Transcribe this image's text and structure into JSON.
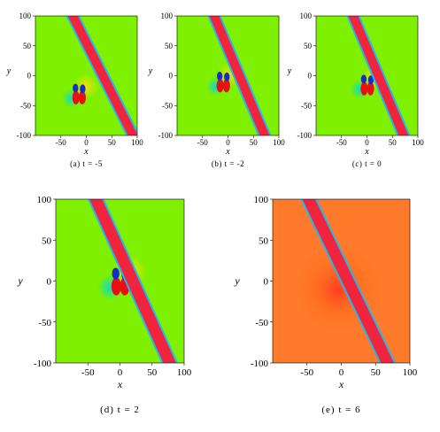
{
  "figure": {
    "panels": [
      {
        "id": "a",
        "caption": "(a) t = -5",
        "axes": {
          "xlabel": "x",
          "ylabel": "y",
          "xticks": [
            "-50",
            "0",
            "50",
            "100"
          ],
          "yticks": [
            "100",
            "50",
            "0",
            "-50",
            "-100"
          ],
          "xlim": [
            -100,
            100
          ],
          "ylim": [
            -100,
            100
          ]
        },
        "background": "#7ef000",
        "band": {
          "x_top": -30,
          "x_bottom": 95,
          "color": "#f0243c"
        },
        "lump": {
          "x": -15,
          "y": -30
        }
      },
      {
        "id": "b",
        "caption": "(b) t = -2",
        "axes": {
          "xlabel": "x",
          "ylabel": "y",
          "xticks": [
            "-50",
            "0",
            "50",
            "100"
          ],
          "yticks": [
            "100",
            "50",
            "0",
            "-50",
            "-100"
          ],
          "xlim": [
            -100,
            100
          ],
          "ylim": [
            -100,
            100
          ]
        },
        "background": "#7ef000",
        "band": {
          "x_top": -30,
          "x_bottom": 75,
          "color": "#f0243c"
        },
        "lump": {
          "x": -10,
          "y": -10
        }
      },
      {
        "id": "c",
        "caption": "(c) t = 0",
        "axes": {
          "xlabel": "x",
          "ylabel": "y",
          "xticks": [
            "-50",
            "0",
            "50",
            "100"
          ],
          "yticks": [
            "100",
            "50",
            "0",
            "-50",
            "-100"
          ],
          "xlim": [
            -100,
            100
          ],
          "ylim": [
            -100,
            100
          ]
        },
        "background": "#7ef000",
        "band": {
          "x_top": -30,
          "x_bottom": 75,
          "color": "#f0243c"
        },
        "lump": {
          "x": 0,
          "y": -15
        }
      },
      {
        "id": "d",
        "caption": "(d) t = 2",
        "axes": {
          "xlabel": "x",
          "ylabel": "y",
          "xticks": [
            "-50",
            "0",
            "50",
            "100"
          ],
          "yticks": [
            "100",
            "50",
            "0",
            "-50",
            "-100"
          ],
          "xlim": [
            -100,
            100
          ],
          "ylim": [
            -100,
            100
          ]
        },
        "background": "#7ef000",
        "band": {
          "x_top": -40,
          "x_bottom": 80,
          "color": "#f0243c"
        },
        "lump": {
          "x": 0,
          "y": 0
        }
      },
      {
        "id": "e",
        "caption": "(e) t = 6",
        "axes": {
          "xlabel": "x",
          "ylabel": "y",
          "xticks": [
            "-50",
            "0",
            "50",
            "100"
          ],
          "yticks": [
            "100",
            "50",
            "0",
            "-50",
            "-100"
          ],
          "xlim": [
            -100,
            100
          ],
          "ylim": [
            -100,
            100
          ]
        },
        "background": "#ff7a2a",
        "band": {
          "x_top": -50,
          "x_bottom": 70,
          "color": "#f0243c"
        },
        "lump": {
          "x": -5,
          "y": -10
        }
      }
    ]
  }
}
